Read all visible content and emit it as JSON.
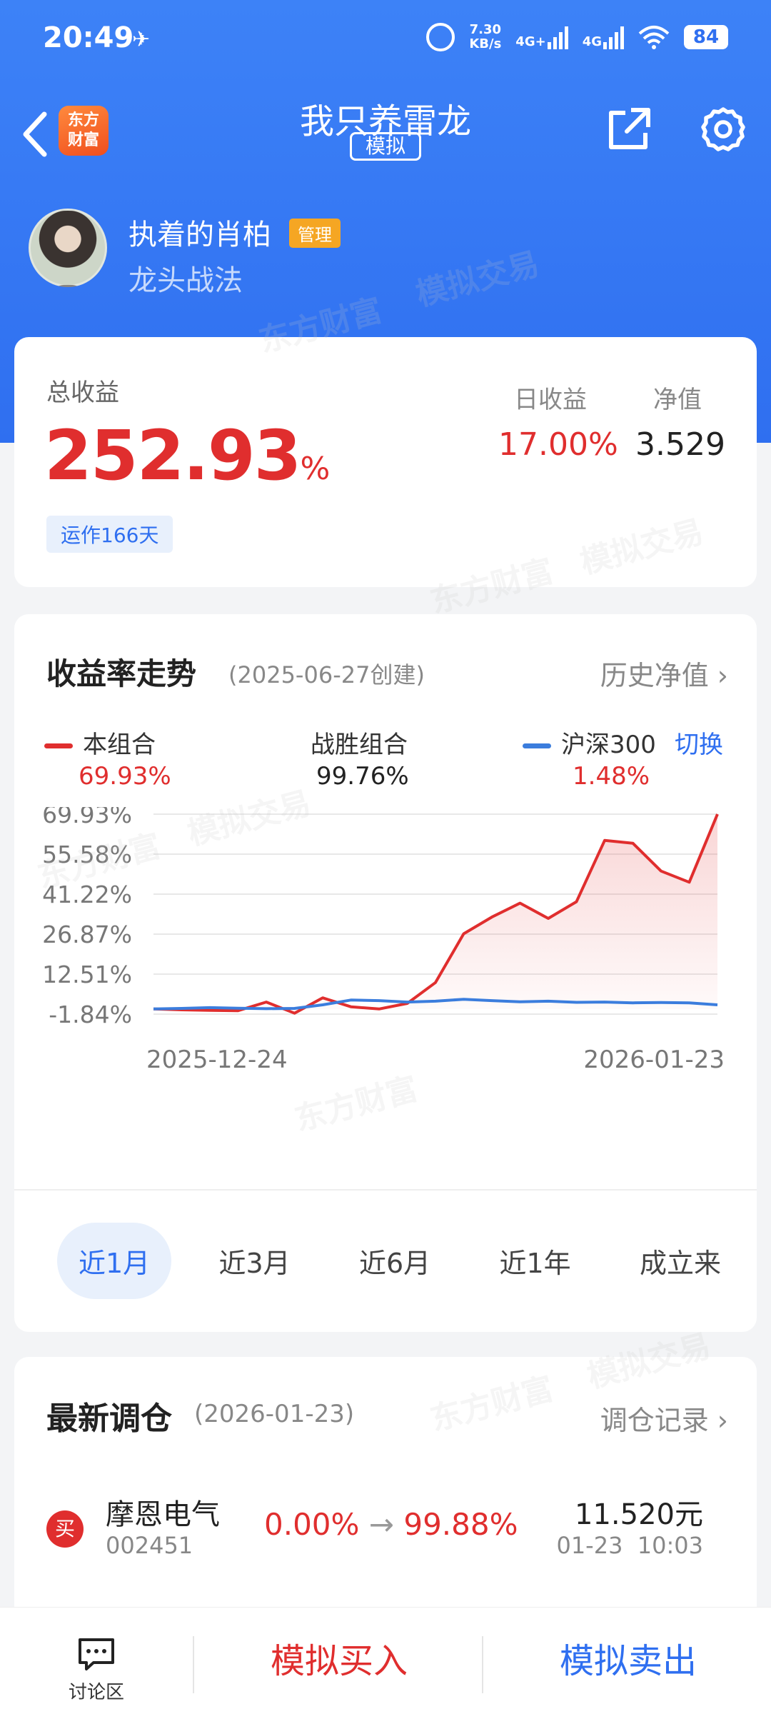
{
  "status_bar": {
    "time": "20:49",
    "speed_value": "7.30",
    "speed_unit": "KB/s",
    "net1": "4G+",
    "net2": "4G",
    "battery": "84"
  },
  "nav": {
    "logo_line1": "东方",
    "logo_line2": "财富",
    "title": "我只养雷龙",
    "tag": "模拟"
  },
  "profile": {
    "name": "执着的肖柏",
    "badge": "管理",
    "strategy": "龙头战法"
  },
  "summary": {
    "total_label": "总收益",
    "total_value": "252.93",
    "total_unit": "%",
    "run_days": "运作166天",
    "daily_label": "日收益",
    "daily_value": "17.00%",
    "nav_label": "净值",
    "nav_value": "3.529"
  },
  "trend": {
    "title": "收益率走势",
    "created": "(2025-06-27创建)",
    "history_link": "历史净值",
    "legend": {
      "portfolio_label": "本组合",
      "portfolio_value": "69.93%",
      "beat_label": "战胜组合",
      "beat_value": "99.76%",
      "index_label": "沪深300",
      "index_value": "1.48%",
      "switch": "切换"
    },
    "periods": [
      "近1月",
      "近3月",
      "近6月",
      "近1年",
      "成立来"
    ],
    "active_period": "近1月"
  },
  "chart_data": {
    "type": "line",
    "x_start": "2025-12-24",
    "x_end": "2026-01-23",
    "x_tick_labels": [
      "2025-12-24",
      "2026-01-23"
    ],
    "y_tick_labels": [
      "69.93%",
      "55.58%",
      "41.22%",
      "26.87%",
      "12.51%",
      "-1.84%"
    ],
    "ylim": [
      -1.84,
      69.93
    ],
    "grid": true,
    "series": [
      {
        "name": "本组合",
        "color": "#e02e2e",
        "fill": true,
        "values": [
          0.0,
          -0.3,
          -0.5,
          -0.6,
          2.5,
          -1.5,
          4.0,
          0.8,
          0.0,
          2.0,
          9.5,
          27.0,
          33.0,
          38.0,
          32.5,
          38.5,
          60.5,
          59.5,
          49.5,
          45.5,
          69.93
        ]
      },
      {
        "name": "沪深300",
        "color": "#3b7ddd",
        "fill": false,
        "values": [
          0.0,
          0.2,
          0.5,
          0.3,
          0.1,
          0.2,
          1.5,
          3.2,
          3.0,
          2.5,
          2.8,
          3.5,
          3.0,
          2.6,
          2.8,
          2.4,
          2.5,
          2.2,
          2.3,
          2.2,
          1.48
        ]
      }
    ]
  },
  "rebalance": {
    "title": "最新调仓",
    "date": "(2026-01-23)",
    "record_link": "调仓记录",
    "items": [
      {
        "action": "买",
        "name": "摩恩电气",
        "code": "002451",
        "from": "0.00%",
        "arrow": "→",
        "to": "99.88%",
        "price": "11.520元",
        "time": "01-23  10:03"
      }
    ]
  },
  "bottom": {
    "discuss": "讨论区",
    "buy": "模拟买入",
    "sell": "模拟卖出"
  },
  "watermark": {
    "brand": "东方财富",
    "sim": "模拟交易"
  },
  "colors": {
    "accent_blue": "#2f6ff0",
    "accent_red": "#e02e2e",
    "badge_orange": "#f5a623"
  }
}
